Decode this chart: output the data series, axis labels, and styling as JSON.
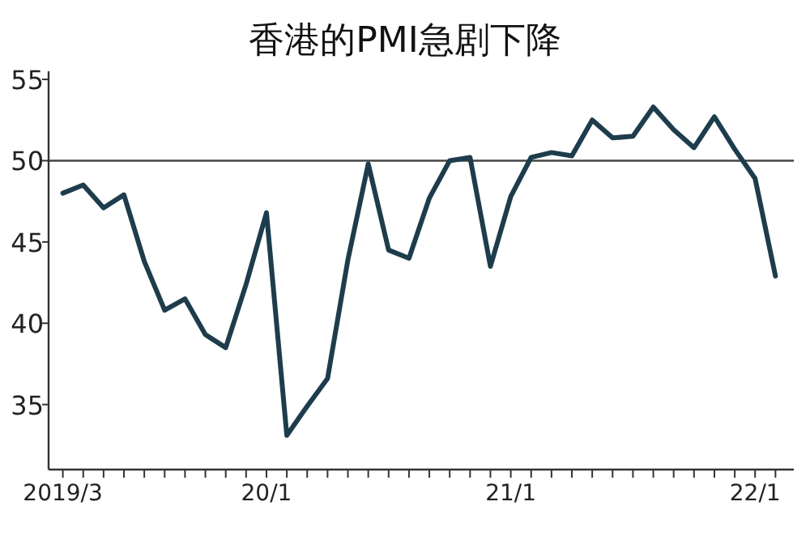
{
  "chart_data": {
    "type": "line",
    "title": "香港的PMI急剧下降",
    "x": [
      "2019-03",
      "2019-04",
      "2019-05",
      "2019-06",
      "2019-07",
      "2019-08",
      "2019-09",
      "2019-10",
      "2019-11",
      "2019-12",
      "2020-01",
      "2020-02",
      "2020-03",
      "2020-04",
      "2020-05",
      "2020-06",
      "2020-07",
      "2020-08",
      "2020-09",
      "2020-10",
      "2020-11",
      "2020-12",
      "2021-01",
      "2021-02",
      "2021-03",
      "2021-04",
      "2021-05",
      "2021-06",
      "2021-07",
      "2021-08",
      "2021-09",
      "2021-10",
      "2021-11",
      "2021-12",
      "2022-01",
      "2022-02"
    ],
    "series": [
      {
        "color": "#1e3d4c",
        "values": [
          48.0,
          48.5,
          47.1,
          47.9,
          43.8,
          40.8,
          41.5,
          39.3,
          38.5,
          42.4,
          46.8,
          33.1,
          34.9,
          36.6,
          43.9,
          49.8,
          44.5,
          44.0,
          47.7,
          50.0,
          50.2,
          43.5,
          47.8,
          50.2,
          50.5,
          50.3,
          52.5,
          51.4,
          51.5,
          53.3,
          51.9,
          50.8,
          52.7,
          50.7,
          48.9,
          42.9
        ]
      }
    ],
    "xlim": [
      "2019-02-10",
      "2022-02-28"
    ],
    "xticks": [
      {
        "value": "2019-03",
        "label": "2019/3"
      },
      {
        "value": "2019-04",
        "label": null
      },
      {
        "value": "2019-05",
        "label": null
      },
      {
        "value": "2019-06",
        "label": null
      },
      {
        "value": "2019-07",
        "label": null
      },
      {
        "value": "2019-08",
        "label": null
      },
      {
        "value": "2019-09",
        "label": null
      },
      {
        "value": "2019-10",
        "label": null
      },
      {
        "value": "2019-11",
        "label": null
      },
      {
        "value": "2019-12",
        "label": null
      },
      {
        "value": "2020-01",
        "label": "20/1"
      },
      {
        "value": "2020-02",
        "label": null
      },
      {
        "value": "2020-03",
        "label": null
      },
      {
        "value": "2020-04",
        "label": null
      },
      {
        "value": "2020-05",
        "label": null
      },
      {
        "value": "2020-06",
        "label": null
      },
      {
        "value": "2020-07",
        "label": null
      },
      {
        "value": "2020-08",
        "label": null
      },
      {
        "value": "2020-09",
        "label": null
      },
      {
        "value": "2020-10",
        "label": null
      },
      {
        "value": "2020-11",
        "label": null
      },
      {
        "value": "2020-12",
        "label": null
      },
      {
        "value": "2021-01",
        "label": "21/1"
      },
      {
        "value": "2021-02",
        "label": null
      },
      {
        "value": "2021-03",
        "label": null
      },
      {
        "value": "2021-04",
        "label": null
      },
      {
        "value": "2021-05",
        "label": null
      },
      {
        "value": "2021-06",
        "label": null
      },
      {
        "value": "2021-07",
        "label": null
      },
      {
        "value": "2021-08",
        "label": null
      },
      {
        "value": "2021-09",
        "label": null
      },
      {
        "value": "2021-10",
        "label": null
      },
      {
        "value": "2021-11",
        "label": null
      },
      {
        "value": "2021-12",
        "label": null
      },
      {
        "value": "2022-01",
        "label": "22/1"
      },
      {
        "value": "2022-02",
        "label": null
      }
    ],
    "ylim": [
      31,
      55.5
    ],
    "yticks": [
      35,
      40,
      45,
      50,
      55
    ],
    "ref_lines": [
      {
        "axis": "y",
        "value": 50,
        "color": "#444444"
      }
    ],
    "grid": false,
    "marker": "none",
    "line_style": "solid"
  }
}
